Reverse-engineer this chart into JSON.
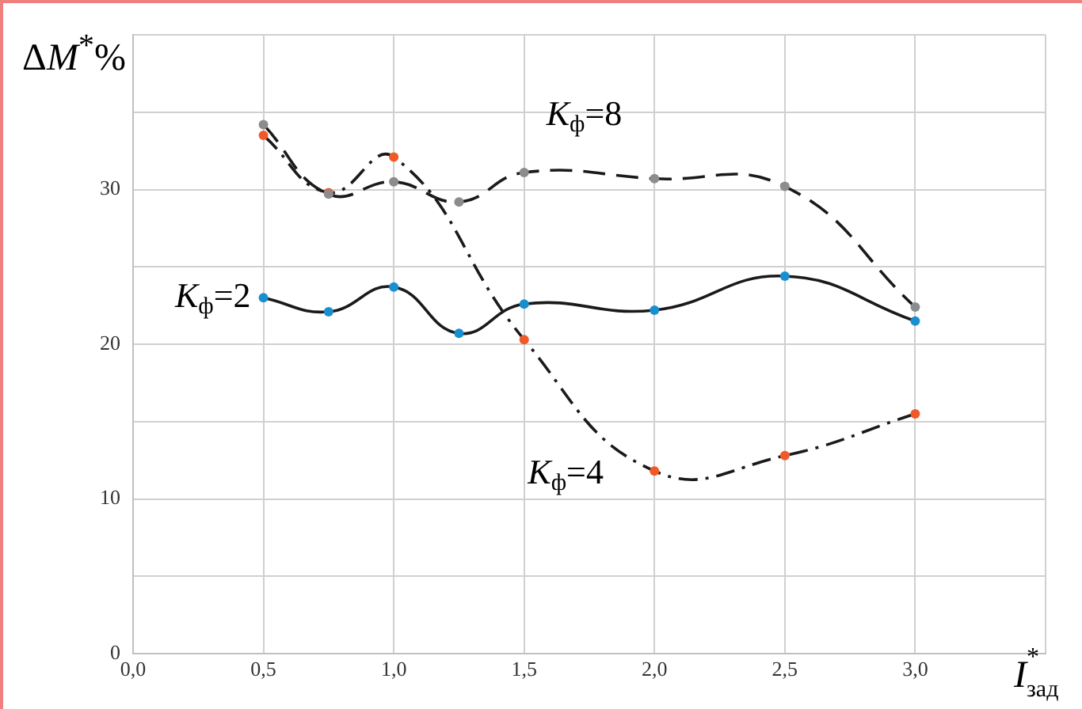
{
  "chart_data": {
    "type": "line",
    "xlabel": "I$^{*}$$_{зад}$",
    "ylabel": "ΔM$^{*}$%",
    "xlim": [
      0,
      3.5
    ],
    "xticks": [
      {
        "value": 0,
        "label": "0,0"
      },
      {
        "value": 0.5,
        "label": "0,5"
      },
      {
        "value": 1,
        "label": "1,0"
      },
      {
        "value": 1.5,
        "label": "1,5"
      },
      {
        "value": 2,
        "label": "2,0"
      },
      {
        "value": 2.5,
        "label": "2,5"
      },
      {
        "value": 3,
        "label": "3,0"
      },
      {
        "value": 3.5,
        "label": null
      }
    ],
    "ylim": [
      0,
      40
    ],
    "yticks": [
      0,
      {
        "value": 5,
        "label": null
      },
      10,
      {
        "value": 15,
        "label": null
      },
      20,
      {
        "value": 25,
        "label": null
      },
      30,
      {
        "value": 35,
        "label": null
      },
      {
        "value": 40,
        "label": null
      }
    ],
    "grid": true,
    "legend": false,
    "marker": "circle",
    "series": [
      {
        "name": "K$_{ф}$=2",
        "color": "#1a8fd0",
        "line_style": "solid",
        "x": [
          0.5,
          0.75,
          1,
          1.25,
          1.5,
          2,
          2.5,
          3
        ],
        "values": [
          23,
          22.1,
          23.7,
          20.7,
          22.6,
          22.2,
          24.4,
          21.5
        ]
      },
      {
        "name": "K$_{ф}$=8",
        "color": "#8c8c8c",
        "line_style": "dashed",
        "x": [
          0.5,
          0.75,
          1,
          1.25,
          1.5,
          2,
          2.5,
          3
        ],
        "values": [
          34.2,
          29.7,
          30.5,
          29.2,
          31.1,
          30.7,
          30.2,
          22.4
        ]
      },
      {
        "name": "K$_{ф}$=4",
        "color": "#f05a28",
        "line_style": "dotted",
        "x": [
          0.5,
          0.75,
          1,
          1.5,
          2,
          2.5,
          3
        ],
        "values": [
          33.5,
          29.8,
          32.1,
          20.3,
          11.8,
          12.8,
          15.5
        ]
      }
    ]
  }
}
